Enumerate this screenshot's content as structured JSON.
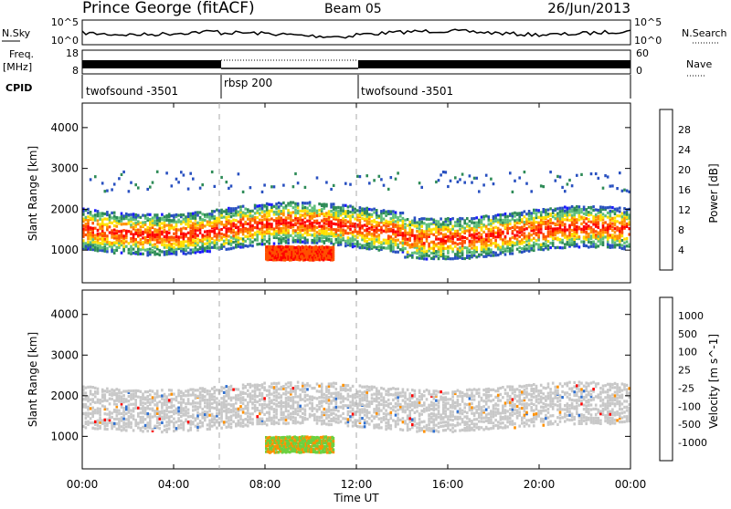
{
  "header": {
    "station": "Prince George (fitACF)",
    "beam": "Beam 05",
    "date": "26/Jun/2013"
  },
  "top_panels": {
    "nsky_label": "N.Sky",
    "nsky_ticks": [
      "10^5",
      "10^0"
    ],
    "nsearch_label": "N.Search",
    "nsearch_ticks": [
      "10^5",
      "10^0"
    ],
    "freq_label_1": "Freq.",
    "freq_label_2": "[MHz]",
    "freq_ticks": [
      "18",
      "8"
    ],
    "nave_label": "Nave",
    "nave_ticks": [
      "60",
      "0"
    ],
    "cpid_label": "CPID",
    "cpid_segments": [
      {
        "label": "twofsound -3501",
        "start": 0,
        "end": 6
      },
      {
        "label": "rbsp 200",
        "start": 6,
        "end": 12
      },
      {
        "label": "twofsound -3501",
        "start": 12,
        "end": 24
      }
    ]
  },
  "chart_data": [
    {
      "type": "heatmap",
      "title": "",
      "ylabel": "Slant Range [km]",
      "xlim": [
        0,
        24
      ],
      "ylim": [
        200,
        4600
      ],
      "yticks": [
        "1000",
        "2000",
        "3000",
        "4000"
      ],
      "colorbar": {
        "label": "Power [dB]",
        "ticks": [
          "4",
          "8",
          "12",
          "16",
          "20",
          "24",
          "28"
        ],
        "colors": [
          "#1a1aff",
          "#2850c0",
          "#2e8b57",
          "#5fbf7a",
          "#ffe000",
          "#ff9000",
          "#ff5000",
          "#ff0000"
        ]
      },
      "bands": [
        {
          "name": "main echo band",
          "x": [
            0,
            24
          ],
          "range_km": [
            1300,
            1800
          ],
          "power_db": [
            12,
            30
          ]
        },
        {
          "name": "near-range echoes",
          "x": [
            8,
            11
          ],
          "range_km": [
            700,
            1100
          ],
          "power_db": [
            20,
            30
          ]
        }
      ]
    },
    {
      "type": "heatmap",
      "title": "",
      "ylabel": "Slant Range [km]",
      "xlabel": "Time UT",
      "xlim": [
        0,
        24
      ],
      "ylim": [
        200,
        4600
      ],
      "yticks": [
        "1000",
        "2000",
        "3000",
        "4000"
      ],
      "xticks": [
        "00:00",
        "04:00",
        "08:00",
        "12:00",
        "16:00",
        "20:00",
        "00:00"
      ],
      "colorbar": {
        "label": "Velocity [m s^-1]",
        "ticks": [
          "1000",
          "500",
          "100",
          "25",
          "-25",
          "-100",
          "-500",
          "-1000"
        ],
        "colors": [
          "#1a3cc8",
          "#2e6fd0",
          "#3c9a50",
          "#6cd040",
          "#c8c8c8",
          "#ffd000",
          "#ff9000",
          "#ff5000",
          "#ff0000"
        ]
      },
      "bands": [
        {
          "name": "ground scatter",
          "x": [
            0,
            24
          ],
          "range_km": [
            1200,
            2300
          ],
          "velocity": [
            -25,
            25
          ]
        },
        {
          "name": "ionospheric scatter",
          "x": [
            8,
            11
          ],
          "range_km": [
            500,
            1200
          ],
          "velocity": [
            -100,
            100
          ]
        }
      ]
    }
  ]
}
